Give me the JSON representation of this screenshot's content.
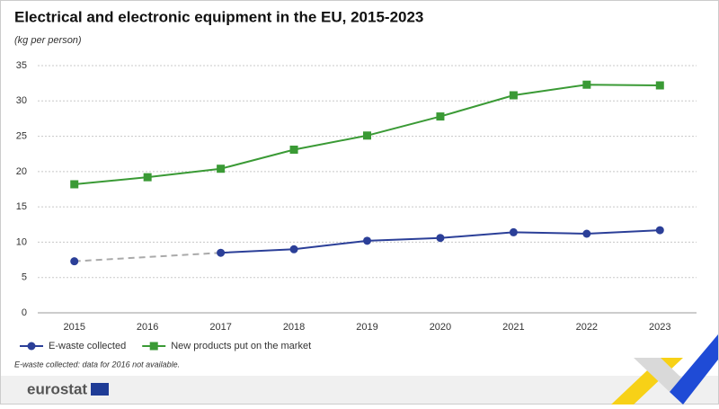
{
  "chart_data": {
    "type": "line",
    "title": "Electrical and electronic equipment in the EU, 2015-2023",
    "subtitle": "(kg per person)",
    "x": [
      "2015",
      "2016",
      "2017",
      "2018",
      "2019",
      "2020",
      "2021",
      "2022",
      "2023"
    ],
    "series": [
      {
        "name": "E-waste collected",
        "color": "#2b3f98",
        "marker": "circle",
        "gap_color": "#aaaaaa",
        "values": [
          7.3,
          null,
          8.5,
          9.0,
          10.2,
          10.6,
          11.4,
          11.2,
          11.7
        ]
      },
      {
        "name": "New products put on the market",
        "color": "#3a9a35",
        "marker": "square",
        "values": [
          18.2,
          19.2,
          20.4,
          23.1,
          25.1,
          27.8,
          30.8,
          32.3,
          32.2
        ]
      }
    ],
    "ylim": [
      0,
      35
    ],
    "yticks": [
      0,
      5,
      10,
      15,
      20,
      25,
      30,
      35
    ],
    "grid": true,
    "note": "E-waste collected: data for 2016 not available.",
    "branding": "eurostat"
  }
}
